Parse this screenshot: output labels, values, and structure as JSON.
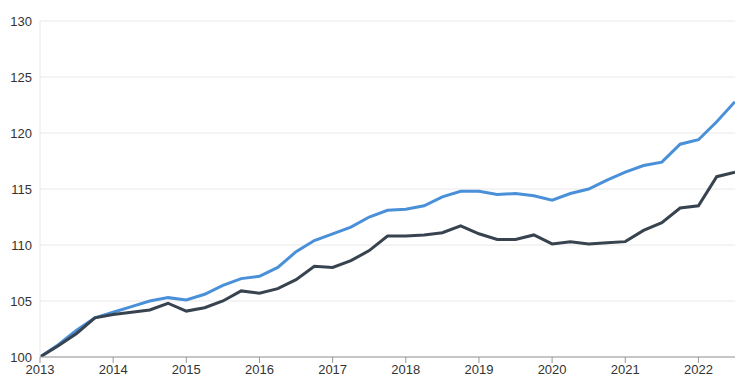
{
  "chart_data": {
    "type": "line",
    "x": [
      2013,
      2013.25,
      2013.5,
      2013.75,
      2014,
      2014.25,
      2014.5,
      2014.75,
      2015,
      2015.25,
      2015.5,
      2015.75,
      2016,
      2016.25,
      2016.5,
      2016.75,
      2017,
      2017.25,
      2017.5,
      2017.75,
      2018,
      2018.25,
      2018.5,
      2018.75,
      2019,
      2019.25,
      2019.5,
      2019.75,
      2020,
      2020.25,
      2020.5,
      2020.75,
      2021,
      2021.25,
      2021.5,
      2021.75,
      2022,
      2022.25,
      2022.5
    ],
    "series": [
      {
        "color": "#4a90d9",
        "values": [
          100,
          101.1,
          102.4,
          103.5,
          104.0,
          104.5,
          105.0,
          105.3,
          105.1,
          105.6,
          106.4,
          107.0,
          107.2,
          108.0,
          109.4,
          110.4,
          111.0,
          111.6,
          112.5,
          113.1,
          113.2,
          113.5,
          114.3,
          114.8,
          114.8,
          114.5,
          114.6,
          114.4,
          114.0,
          114.6,
          115.0,
          115.8,
          116.5,
          117.1,
          117.4,
          119.0,
          119.4,
          121.0,
          122.8
        ]
      },
      {
        "color": "#37434f",
        "values": [
          100,
          101.0,
          102.1,
          103.5,
          103.8,
          104.0,
          104.2,
          104.8,
          104.1,
          104.4,
          105.0,
          105.9,
          105.7,
          106.1,
          106.9,
          108.1,
          108.0,
          108.6,
          109.5,
          110.8,
          110.8,
          110.9,
          111.1,
          111.7,
          111.0,
          110.5,
          110.5,
          110.9,
          110.1,
          110.3,
          110.1,
          110.2,
          110.3,
          111.3,
          112.0,
          113.3,
          113.5,
          116.1,
          116.5
        ]
      }
    ],
    "xlim": [
      2013,
      2022.5
    ],
    "xticks": [
      2013,
      2014,
      2015,
      2016,
      2017,
      2018,
      2019,
      2020,
      2021,
      2022
    ],
    "ylim": [
      100,
      130
    ],
    "yticks": [
      100,
      105,
      110,
      115,
      120,
      125,
      130
    ],
    "grid": true
  }
}
